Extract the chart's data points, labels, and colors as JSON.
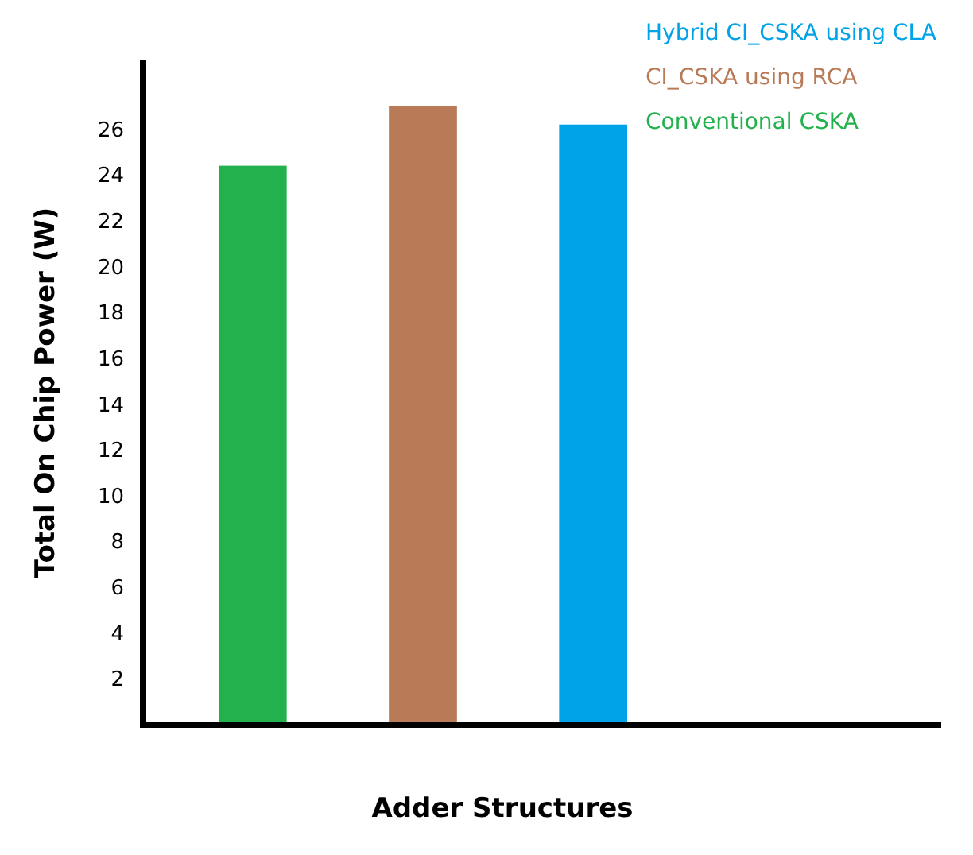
{
  "chart_data": {
    "type": "bar",
    "xlabel": "Adder Structures",
    "ylabel": "Total On Chip Power (W)",
    "categories": [
      null,
      null,
      null
    ],
    "series": [
      {
        "name": "Conventional CSKA",
        "color": "#22b14c",
        "values": [
          24.4,
          null,
          null
        ]
      },
      {
        "name": "CI_CSKA using RCA",
        "color": "#b97a57",
        "values": [
          null,
          27,
          null
        ]
      },
      {
        "name": "Hybrid CI_CSKA using CLA",
        "color": "#00a2e8",
        "values": [
          null,
          null,
          26.2
        ]
      }
    ],
    "ylim": [
      0,
      29
    ],
    "yticks": [
      2,
      4,
      6,
      8,
      10,
      12,
      14,
      16,
      18,
      20,
      22,
      24,
      26
    ],
    "grid": false,
    "stacked": true,
    "legend": "top right"
  }
}
